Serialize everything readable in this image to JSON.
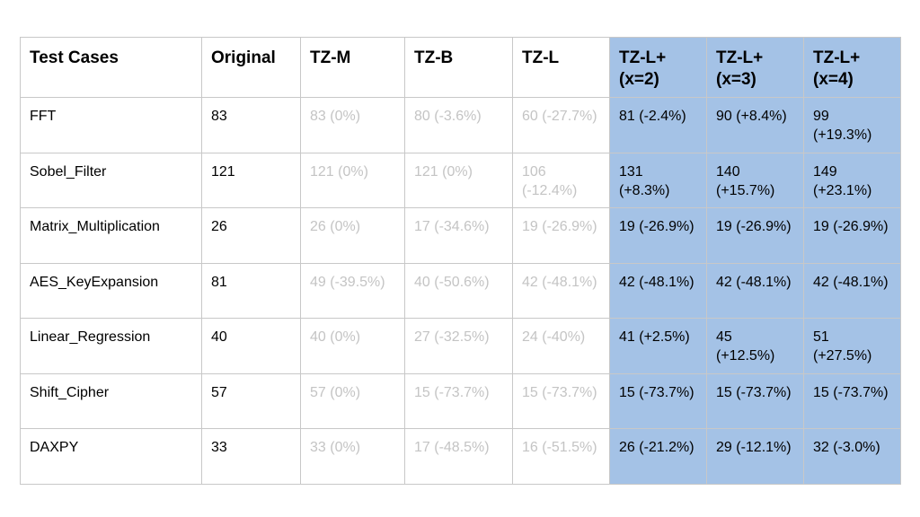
{
  "table": {
    "headers": [
      "Test Cases",
      "Original",
      "TZ-M",
      "TZ-B",
      "TZ-L",
      "TZ-L+ (x=2)",
      "TZ-L+ (x=3)",
      "TZ-L+ (x=4)"
    ],
    "highlight_color": "#a4c2e6",
    "faded_text_color": "#c4c4c4",
    "rows": [
      [
        "FFT",
        "83",
        "83 (0%)",
        "80 (-3.6%)",
        "60 (-27.7%)",
        "81 (-2.4%)",
        "90 (+8.4%)",
        "99 (+19.3%)"
      ],
      [
        "Sobel_Filter",
        "121",
        "121 (0%)",
        "121 (0%)",
        "106 (-12.4%)",
        "131 (+8.3%)",
        "140 (+15.7%)",
        "149 (+23.1%)"
      ],
      [
        "Matrix_Multiplication",
        "26",
        "26 (0%)",
        "17 (-34.6%)",
        "19 (-26.9%)",
        "19 (-26.9%)",
        "19 (-26.9%)",
        "19 (-26.9%)"
      ],
      [
        "AES_KeyExpansion",
        "81",
        "49 (-39.5%)",
        "40 (-50.6%)",
        "42 (-48.1%)",
        "42 (-48.1%)",
        "42 (-48.1%)",
        "42 (-48.1%)"
      ],
      [
        "Linear_Regression",
        "40",
        "40 (0%)",
        "27 (-32.5%)",
        "24 (-40%)",
        "41 (+2.5%)",
        "45 (+12.5%)",
        "51 (+27.5%)"
      ],
      [
        "Shift_Cipher",
        "57",
        "57 (0%)",
        "15 (-73.7%)",
        "15 (-73.7%)",
        "15 (-73.7%)",
        "15 (-73.7%)",
        "15 (-73.7%)"
      ],
      [
        "DAXPY",
        "33",
        "33 (0%)",
        "17 (-48.5%)",
        "16 (-51.5%)",
        "26 (-21.2%)",
        "29 (-12.1%)",
        "32 (-3.0%)"
      ]
    ]
  }
}
